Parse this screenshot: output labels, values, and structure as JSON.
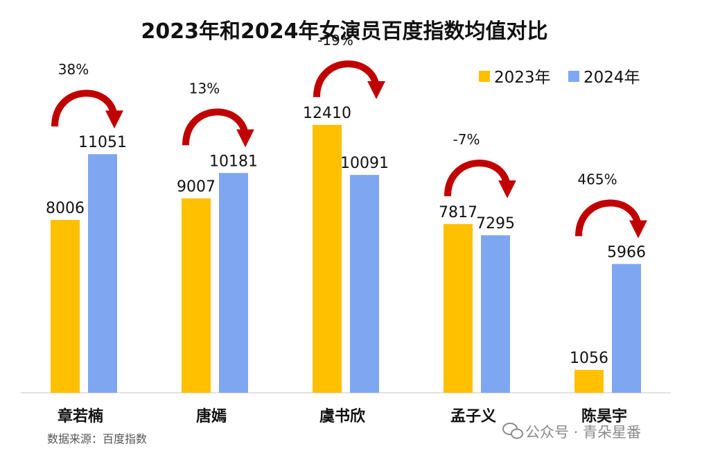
{
  "chart_data": {
    "type": "bar",
    "title": "2023年和2024年女演员百度指数均值对比",
    "categories": [
      "章若楠",
      "唐嫣",
      "虞书欣",
      "孟子义",
      "陈昊宇"
    ],
    "series": [
      {
        "name": "2023年",
        "color": "#FFC000",
        "values": [
          8006,
          9007,
          12410,
          7817,
          1056
        ]
      },
      {
        "name": "2024年",
        "color": "#7FA7F1",
        "values": [
          11051,
          10181,
          10091,
          7295,
          5966
        ]
      }
    ],
    "change_labels": [
      "38%",
      "13%",
      "-19%",
      "-7%",
      "465%"
    ],
    "arrow_color": "#C00000",
    "ylim": [
      0,
      13500
    ],
    "legend_position": "top-right",
    "xlabel": "",
    "ylabel": ""
  },
  "source_note": "数据来源：百度指数",
  "watermark": {
    "icon": "wechat-icon",
    "text": "公众号 · 青朵星番"
  }
}
